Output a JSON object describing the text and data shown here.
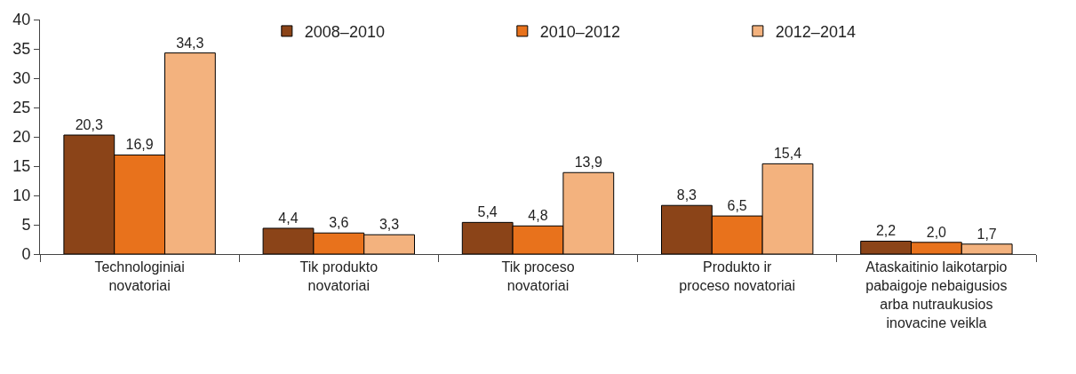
{
  "chart_data": {
    "type": "bar",
    "categories": [
      "Technologiniai\nnovatoriai",
      "Tik produkto\nnovatoriai",
      "Tik proceso\nnovatoriai",
      "Produkto ir\nproceso novatoriai",
      "Ataskaitinio laikotarpio\npabaigoje nebaigusios\narba nutraukusios\ninovacine veikla"
    ],
    "series": [
      {
        "name": "2008–2010",
        "color": "#8b4418",
        "values": [
          20.3,
          4.4,
          5.4,
          8.3,
          2.2
        ],
        "value_labels": [
          "20,3",
          "4,4",
          "5,4",
          "8,3",
          "2,2"
        ]
      },
      {
        "name": "2010–2012",
        "color": "#e8721c",
        "values": [
          16.9,
          3.6,
          4.8,
          6.5,
          2.0
        ],
        "value_labels": [
          "16,9",
          "3,6",
          "4,8",
          "6,5",
          "2,0"
        ]
      },
      {
        "name": "2012–2014",
        "color": "#f3b27e",
        "values": [
          34.3,
          3.3,
          13.9,
          15.4,
          1.7
        ],
        "value_labels": [
          "34,3",
          "3,3",
          "13,9",
          "15,4",
          "1,7"
        ]
      }
    ],
    "ylim": [
      0,
      40
    ],
    "yticks": [
      0,
      5,
      10,
      15,
      20,
      25,
      30,
      35,
      40
    ],
    "legend": "top"
  }
}
